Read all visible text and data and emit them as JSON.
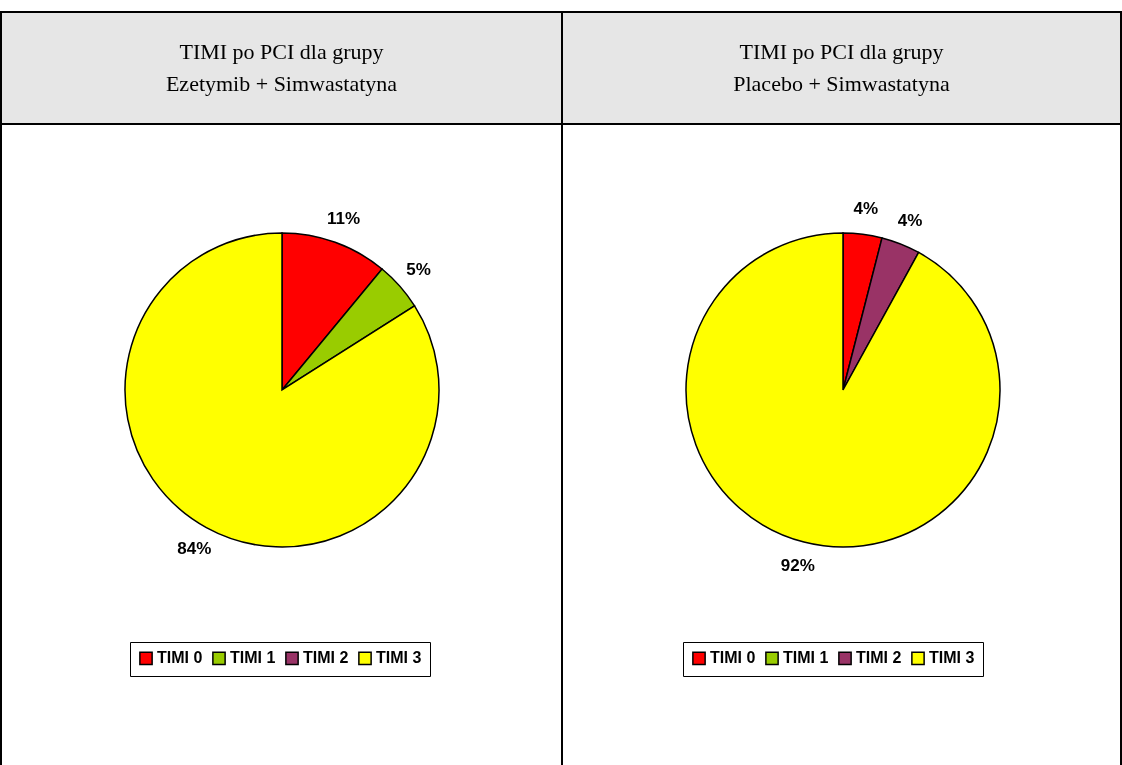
{
  "chart_data": [
    {
      "type": "pie",
      "title": "TIMI po PCI dla grupy\nEzetymib + Simwastatyna",
      "categories": [
        "TIMI 0",
        "TIMI 1",
        "TIMI 2",
        "TIMI 3"
      ],
      "values": [
        11,
        5,
        0,
        84
      ],
      "colors": [
        "#ff0000",
        "#99cc00",
        "#993366",
        "#ffff00"
      ],
      "value_labels": [
        "11%",
        "5%",
        null,
        "84%"
      ],
      "legend": "bottom"
    },
    {
      "type": "pie",
      "title": "TIMI po PCI dla grupy\nPlacebo + Simwastatyna",
      "categories": [
        "TIMI 0",
        "TIMI 1",
        "TIMI 2",
        "TIMI 3"
      ],
      "values": [
        4,
        0,
        4,
        92
      ],
      "colors": [
        "#ff0000",
        "#99cc00",
        "#993366",
        "#ffff00"
      ],
      "value_labels": [
        "4%",
        null,
        "4%",
        "92%"
      ],
      "legend": "bottom"
    }
  ]
}
